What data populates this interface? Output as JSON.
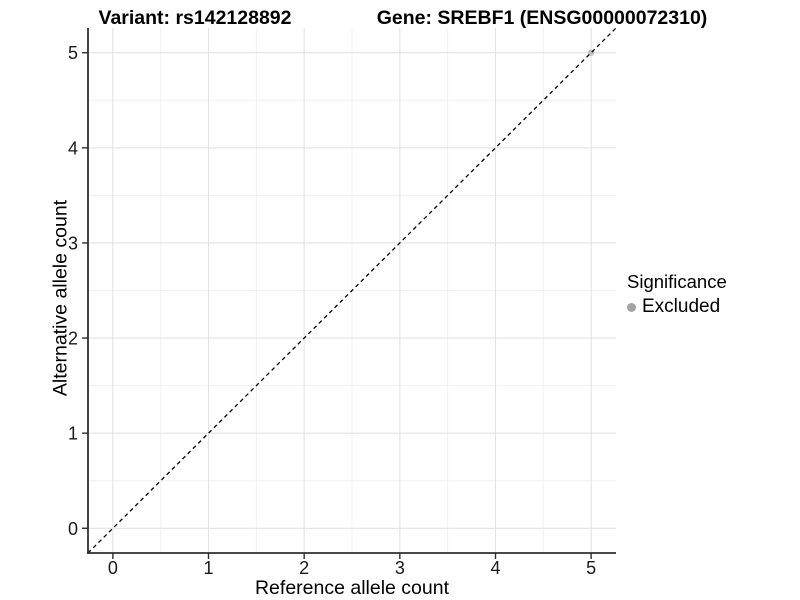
{
  "header": {
    "variant_title": "Variant: rs142128892",
    "gene_title": "Gene: SREBF1 (ENSG00000072310)"
  },
  "chart_data": {
    "type": "scatter",
    "xlabel": "Reference allele count",
    "ylabel": "Alternative allele count",
    "xlim": [
      -0.26,
      5.26
    ],
    "ylim": [
      -0.26,
      5.26
    ],
    "x_ticks": [
      0,
      1,
      2,
      3,
      4,
      5
    ],
    "y_ticks": [
      0,
      1,
      2,
      3,
      4,
      5
    ],
    "x_minor_ticks": [
      0.5,
      1.5,
      2.5,
      3.5,
      4.5
    ],
    "y_minor_ticks": [
      0.5,
      1.5,
      2.5,
      3.5,
      4.5
    ],
    "grid": true,
    "series": [
      {
        "name": "Excluded",
        "color": "#bdbdbd",
        "points": [
          [
            5,
            5
          ]
        ]
      }
    ],
    "reference_line": {
      "kind": "identity",
      "style": "dashed",
      "color": "#000000",
      "from": [
        -0.26,
        -0.26
      ],
      "to": [
        5.26,
        5.26
      ]
    },
    "legend": {
      "title": "Significance",
      "position": "right",
      "entries": [
        {
          "label": "Excluded",
          "color": "#a3a3a3"
        }
      ]
    },
    "colors": {
      "axis": "#2f2f2f",
      "tick_label": "#1a1a1a",
      "grid_major": "#e3e3e3",
      "grid_minor": "#f0f0f0",
      "background": "#ffffff"
    }
  }
}
